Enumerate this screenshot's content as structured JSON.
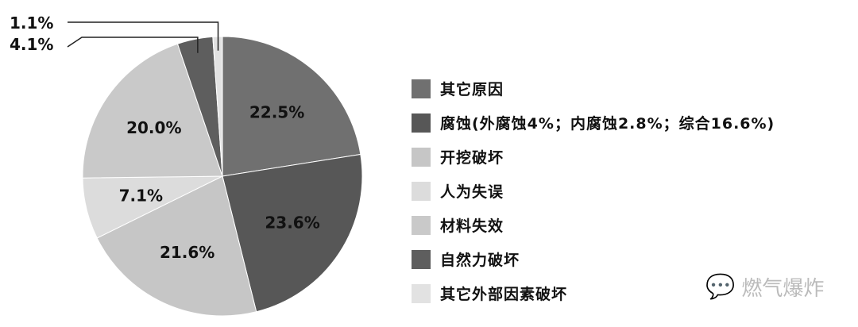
{
  "chart_data": {
    "type": "pie",
    "title": "",
    "direction": "clockwise-from-top",
    "slices": [
      {
        "label": "其它原因",
        "value": 22.5,
        "data_label": "22.5%",
        "color": "#707070"
      },
      {
        "label": "腐蚀(外腐蚀4%；内腐蚀2.8%；综合16.6%)",
        "value": 23.6,
        "data_label": "23.6%",
        "color": "#575757"
      },
      {
        "label": "开挖破坏",
        "value": 21.6,
        "data_label": "21.6%",
        "color": "#c6c6c6"
      },
      {
        "label": "人为失误",
        "value": 7.1,
        "data_label": "7.1%",
        "color": "#dcdcdc"
      },
      {
        "label": "材料失效",
        "value": 20.0,
        "data_label": "20.0%",
        "color": "#c9c9c9"
      },
      {
        "label": "自然力破坏",
        "value": 4.1,
        "data_label": "4.1%",
        "color": "#5e5e5e"
      },
      {
        "label": "其它外部因素破坏",
        "value": 1.1,
        "data_label": "1.1%",
        "color": "#e2e2e2"
      }
    ],
    "legend_placement": "right"
  },
  "watermark": {
    "text": "燃气爆炸",
    "icon": "wechat-icon"
  }
}
